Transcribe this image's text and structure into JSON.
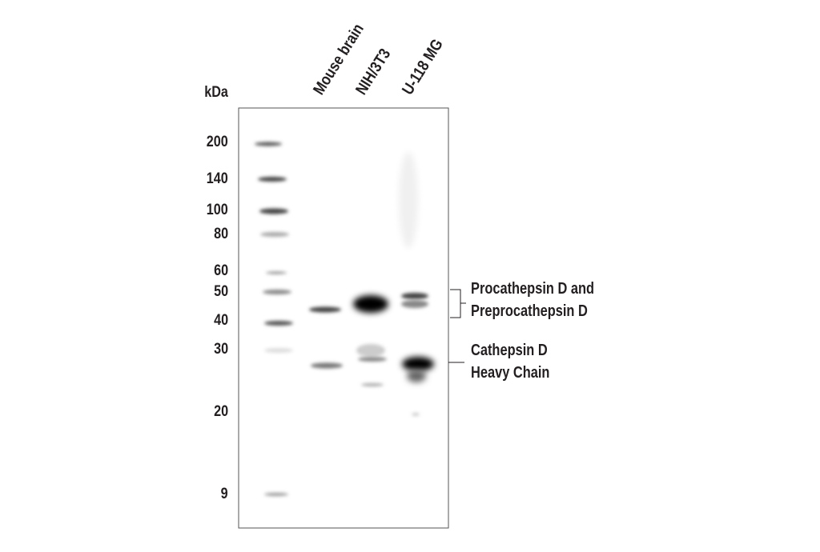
{
  "axis_unit": "kDa",
  "markers": [
    "200",
    "140",
    "100",
    "80",
    "60",
    "50",
    "40",
    "30",
    "20",
    "9"
  ],
  "lanes": [
    "Mouse brain",
    "NIH/3T3",
    "U-118 MG"
  ],
  "annotations": {
    "pro": [
      "Procathepsin D and",
      "Preprocathepsin D"
    ],
    "heavy": [
      "Cathepsin D",
      "Heavy Chain"
    ]
  }
}
